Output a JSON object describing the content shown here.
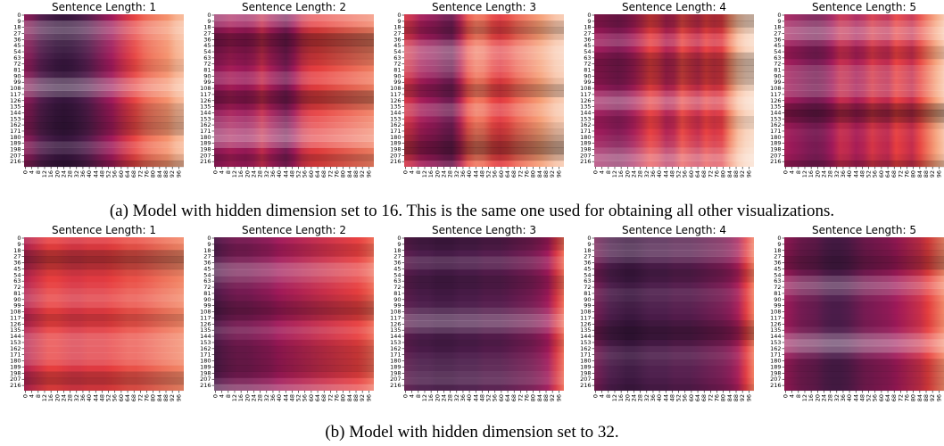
{
  "chart_data": [
    {
      "type": "heatmap",
      "caption": "(a) Model with hidden dimension set to 16. This is the same one used for obtaining all other visualizations.",
      "colormap": "rocket",
      "colors": [
        "#03051a",
        "#4c1d4b",
        "#a11a5b",
        "#e83f3f",
        "#f69c73",
        "#faebdd"
      ],
      "y_ticks": [
        "0",
        "9",
        "18",
        "27",
        "36",
        "45",
        "54",
        "63",
        "72",
        "81",
        "90",
        "99",
        "108",
        "117",
        "126",
        "135",
        "144",
        "153",
        "162",
        "171",
        "180",
        "189",
        "198",
        "207",
        "216"
      ],
      "x_ticks": [
        "0",
        "4",
        "8",
        "12",
        "16",
        "20",
        "24",
        "28",
        "32",
        "36",
        "40",
        "44",
        "48",
        "52",
        "56",
        "60",
        "64",
        "68",
        "72",
        "76",
        "80",
        "84",
        "88",
        "92",
        "96"
      ],
      "panels": [
        {
          "title": "Sentence Length: 1",
          "column_profile": [
            0.35,
            0.3,
            0.22,
            0.18,
            0.15,
            0.14,
            0.15,
            0.18,
            0.22,
            0.28,
            0.34,
            0.4,
            0.48,
            0.55,
            0.62,
            0.68,
            0.72,
            0.75,
            0.78,
            0.85,
            0.88
          ],
          "row_contrast": 0.18
        },
        {
          "title": "Sentence Length: 2",
          "column_profile": [
            0.35,
            0.38,
            0.42,
            0.4,
            0.38,
            0.42,
            0.5,
            0.42,
            0.36,
            0.3,
            0.4,
            0.52,
            0.58,
            0.6,
            0.62,
            0.64,
            0.66,
            0.68,
            0.7,
            0.72,
            0.74
          ],
          "row_contrast": 0.22
        },
        {
          "title": "Sentence Length: 3",
          "column_profile": [
            0.55,
            0.5,
            0.42,
            0.38,
            0.35,
            0.3,
            0.28,
            0.45,
            0.65,
            0.72,
            0.7,
            0.62,
            0.58,
            0.62,
            0.68,
            0.72,
            0.76,
            0.8,
            0.85,
            0.9,
            0.92
          ],
          "row_contrast": 0.2
        },
        {
          "title": "Sentence Length: 4",
          "column_profile": [
            0.4,
            0.38,
            0.35,
            0.33,
            0.36,
            0.42,
            0.5,
            0.6,
            0.55,
            0.45,
            0.48,
            0.62,
            0.55,
            0.5,
            0.6,
            0.55,
            0.58,
            0.75,
            0.88,
            0.94,
            0.96
          ],
          "row_contrast": 0.2
        },
        {
          "title": "Sentence Length: 5",
          "column_profile": [
            0.42,
            0.38,
            0.35,
            0.32,
            0.3,
            0.33,
            0.4,
            0.5,
            0.48,
            0.42,
            0.46,
            0.55,
            0.5,
            0.48,
            0.6,
            0.55,
            0.5,
            0.62,
            0.72,
            0.82,
            0.9
          ],
          "row_contrast": 0.2
        }
      ]
    },
    {
      "type": "heatmap",
      "caption": "(b) Model with hidden dimension set to 32.",
      "colormap": "rocket",
      "colors": [
        "#03051a",
        "#4c1d4b",
        "#a11a5b",
        "#e83f3f",
        "#f69c73",
        "#faebdd"
      ],
      "y_ticks": [
        "0",
        "9",
        "18",
        "27",
        "36",
        "45",
        "54",
        "63",
        "72",
        "81",
        "90",
        "99",
        "108",
        "117",
        "126",
        "135",
        "144",
        "153",
        "162",
        "171",
        "180",
        "189",
        "198",
        "207",
        "216"
      ],
      "x_ticks": [
        "0",
        "4",
        "8",
        "12",
        "16",
        "20",
        "24",
        "28",
        "32",
        "36",
        "40",
        "44",
        "48",
        "52",
        "56",
        "60",
        "64",
        "68",
        "72",
        "76",
        "80",
        "84",
        "88",
        "92",
        "96"
      ],
      "panels": [
        {
          "title": "Sentence Length: 1",
          "column_profile": [
            0.45,
            0.5,
            0.55,
            0.6,
            0.6,
            0.58,
            0.56,
            0.56,
            0.58,
            0.58,
            0.58,
            0.6,
            0.62,
            0.64,
            0.64,
            0.66,
            0.68,
            0.7,
            0.72,
            0.74,
            0.76
          ],
          "row_contrast": 0.16
        },
        {
          "title": "Sentence Length: 2",
          "column_profile": [
            0.2,
            0.25,
            0.28,
            0.3,
            0.3,
            0.32,
            0.34,
            0.36,
            0.4,
            0.42,
            0.44,
            0.46,
            0.48,
            0.5,
            0.52,
            0.54,
            0.56,
            0.58,
            0.6,
            0.64,
            0.7
          ],
          "row_contrast": 0.16
        },
        {
          "title": "Sentence Length: 3",
          "column_profile": [
            0.25,
            0.22,
            0.2,
            0.2,
            0.18,
            0.18,
            0.18,
            0.2,
            0.2,
            0.2,
            0.22,
            0.22,
            0.22,
            0.24,
            0.26,
            0.28,
            0.3,
            0.34,
            0.4,
            0.55,
            0.7
          ],
          "row_contrast": 0.14
        },
        {
          "title": "Sentence Length: 4",
          "column_profile": [
            0.3,
            0.25,
            0.2,
            0.18,
            0.16,
            0.16,
            0.18,
            0.2,
            0.2,
            0.2,
            0.22,
            0.22,
            0.22,
            0.24,
            0.26,
            0.28,
            0.3,
            0.34,
            0.42,
            0.58,
            0.74
          ],
          "row_contrast": 0.14
        },
        {
          "title": "Sentence Length: 5",
          "column_profile": [
            0.4,
            0.35,
            0.3,
            0.28,
            0.26,
            0.22,
            0.2,
            0.2,
            0.22,
            0.26,
            0.3,
            0.32,
            0.34,
            0.36,
            0.4,
            0.44,
            0.48,
            0.52,
            0.6,
            0.68,
            0.76
          ],
          "row_contrast": 0.18
        }
      ]
    }
  ]
}
